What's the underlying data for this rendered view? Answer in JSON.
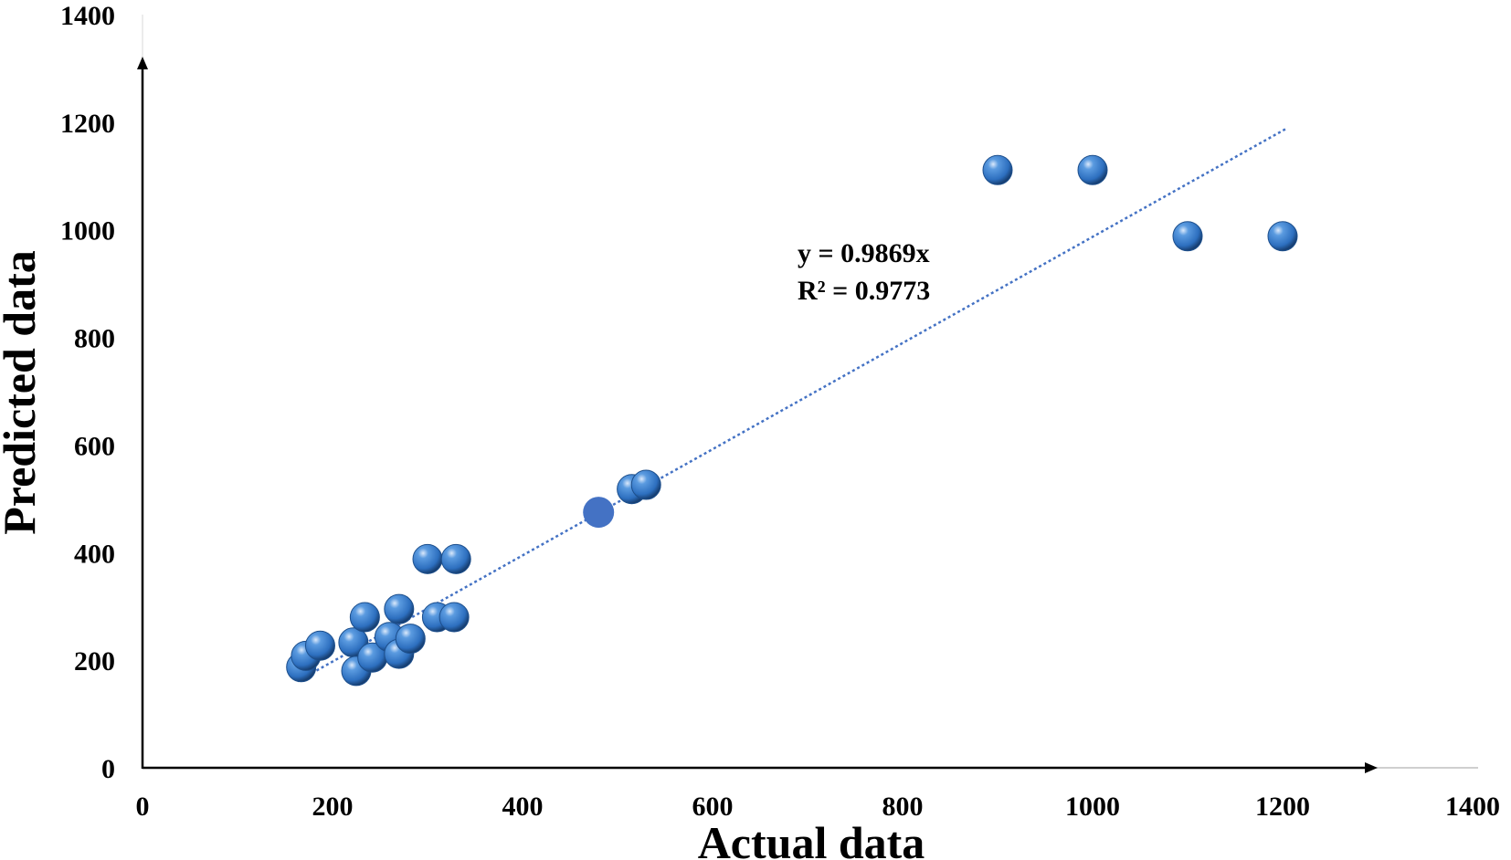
{
  "chart_data": {
    "type": "scatter",
    "title": "",
    "xlabel": "Actual data",
    "ylabel": "Predicted data",
    "xlim": [
      0,
      1400
    ],
    "ylim": [
      0,
      1400
    ],
    "x_ticks": [
      "0",
      "200",
      "400",
      "600",
      "800",
      "1000",
      "1200",
      "1400"
    ],
    "y_ticks": [
      "0",
      "200",
      "400",
      "600",
      "800",
      "1000",
      "1200",
      "1400"
    ],
    "grid": false,
    "legend": "none",
    "colors": {
      "point": "#3a7cc7",
      "point_dark": "#1d4f8c",
      "point_highlight": "#4472c4",
      "trendline": "#4472c4",
      "axis": "#000000"
    },
    "series": [
      {
        "points": [
          {
            "x": 167,
            "y": 187
          },
          {
            "x": 172,
            "y": 208
          },
          {
            "x": 187,
            "y": 227
          },
          {
            "x": 222,
            "y": 233
          },
          {
            "x": 225,
            "y": 180
          },
          {
            "x": 234,
            "y": 280
          },
          {
            "x": 242,
            "y": 205
          },
          {
            "x": 260,
            "y": 243
          },
          {
            "x": 270,
            "y": 295
          },
          {
            "x": 270,
            "y": 212
          },
          {
            "x": 282,
            "y": 240
          },
          {
            "x": 300,
            "y": 388
          },
          {
            "x": 310,
            "y": 280
          },
          {
            "x": 330,
            "y": 388
          },
          {
            "x": 328,
            "y": 280
          },
          {
            "x": 515,
            "y": 518
          },
          {
            "x": 530,
            "y": 526
          },
          {
            "x": 900,
            "y": 1111
          },
          {
            "x": 1000,
            "y": 1111
          },
          {
            "x": 1100,
            "y": 988
          },
          {
            "x": 1200,
            "y": 988
          }
        ]
      },
      {
        "highlight": true,
        "points": [
          {
            "x": 480,
            "y": 475
          }
        ]
      }
    ],
    "trendline": {
      "slope": 0.9869,
      "x_range": [
        163,
        1203
      ]
    },
    "annotations": {
      "equation": "y = 0.9869x",
      "r_squared": "R² = 0.9773"
    }
  }
}
